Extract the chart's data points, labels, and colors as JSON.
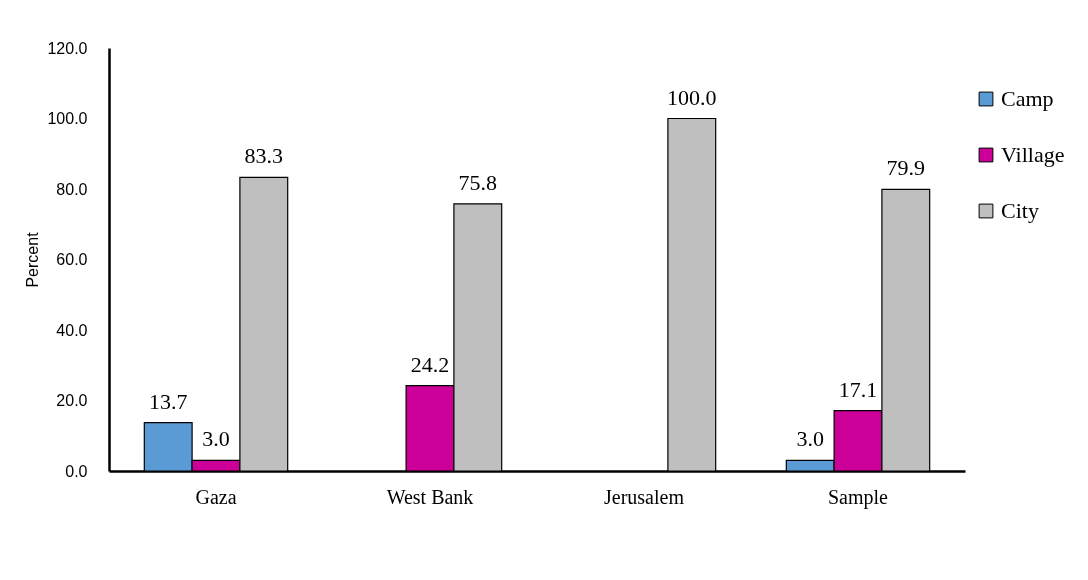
{
  "chart_data": {
    "type": "bar",
    "ylabel": "Percent",
    "categories": [
      "Gaza",
      "West Bank",
      "Jerusalem",
      "Sample"
    ],
    "series": [
      {
        "name": "Camp",
        "color": "#5b9bd5",
        "values": [
          13.7,
          null,
          null,
          3.0
        ],
        "value_labels": [
          "13.7",
          null,
          null,
          "3.0"
        ]
      },
      {
        "name": "Village",
        "color": "#cc0099",
        "values": [
          3.0,
          24.2,
          null,
          17.1
        ],
        "value_labels": [
          "3.0",
          "24.2",
          null,
          "17.1"
        ]
      },
      {
        "name": "City",
        "color": "#bfbfbf",
        "values": [
          83.3,
          75.8,
          100.0,
          79.9
        ],
        "value_labels": [
          "83.3",
          "75.8",
          "100.0",
          "79.9"
        ]
      }
    ],
    "ylim": [
      0,
      120
    ],
    "yticks": [
      {
        "value": 0,
        "label": "0.0"
      },
      {
        "value": 20,
        "label": "20.0"
      },
      {
        "value": 40,
        "label": "40.0"
      },
      {
        "value": 60,
        "label": "60.0"
      },
      {
        "value": 80,
        "label": "80.0"
      },
      {
        "value": 100,
        "label": "100.0"
      },
      {
        "value": 120,
        "label": "120.0"
      }
    ],
    "grid": false,
    "legend": "right"
  }
}
